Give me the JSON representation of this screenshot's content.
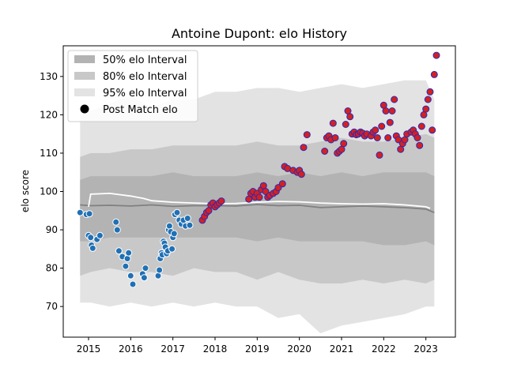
{
  "chart_data": {
    "type": "scatter",
    "title": "Antoine Dupont: elo History",
    "xlabel": "",
    "ylabel": "elo score",
    "xlim": [
      2014.4,
      2023.7
    ],
    "ylim": [
      62,
      138
    ],
    "xticks": [
      2015,
      2016,
      2017,
      2018,
      2019,
      2020,
      2021,
      2022,
      2023
    ],
    "yticks": [
      70,
      80,
      90,
      100,
      110,
      120,
      130
    ],
    "legend_position": "top-left",
    "legend": [
      {
        "label": "50% elo Interval",
        "kind": "band",
        "color": "#b3b3b3"
      },
      {
        "label": "80% elo Interval",
        "kind": "band",
        "color": "#c8c8c8"
      },
      {
        "label": "95% elo Interval",
        "kind": "band",
        "color": "#e3e3e3"
      },
      {
        "label": "Post Match elo",
        "kind": "marker",
        "color": "#000000"
      }
    ],
    "bands": {
      "x": [
        2014.8,
        2015.05,
        2015.5,
        2016.0,
        2016.5,
        2017.0,
        2017.5,
        2018.0,
        2018.5,
        2019.0,
        2019.5,
        2020.0,
        2020.5,
        2021.0,
        2021.5,
        2022.0,
        2022.5,
        2023.0,
        2023.2
      ],
      "q95_lo": [
        71,
        71,
        70,
        71,
        70,
        71,
        70,
        71,
        70,
        70,
        67,
        68,
        63,
        65,
        66,
        67,
        68,
        70,
        70
      ],
      "q95_hi": [
        120,
        121,
        123,
        125,
        122,
        124,
        124,
        126,
        126,
        127,
        127,
        126,
        127,
        128,
        127,
        128,
        129,
        129,
        124
      ],
      "q80_lo": [
        78,
        79,
        80,
        79,
        79,
        78,
        80,
        79,
        79,
        77,
        79,
        77,
        76,
        76,
        77,
        76,
        77,
        76,
        77
      ],
      "q80_hi": [
        109,
        110,
        110,
        111,
        111,
        112,
        112,
        112,
        112,
        113,
        112,
        112,
        113,
        114,
        113,
        113,
        114,
        115,
        114
      ],
      "q50_lo": [
        87,
        87,
        88,
        88,
        88,
        88,
        88,
        88,
        88,
        87,
        88,
        87,
        87,
        87,
        87,
        86,
        86,
        87,
        86
      ],
      "q50_hi": [
        103,
        104,
        104,
        104,
        104,
        105,
        104,
        104,
        104,
        105,
        104,
        105,
        104,
        105,
        104,
        105,
        105,
        105,
        104
      ]
    },
    "series": [
      {
        "name": "median elo",
        "kind": "line",
        "color": "#808080",
        "x": [
          2014.8,
          2015.05,
          2015.5,
          2016.0,
          2016.5,
          2017.0,
          2017.5,
          2018.0,
          2018.5,
          2019.0,
          2019.5,
          2020.0,
          2020.5,
          2021.0,
          2021.5,
          2022.0,
          2022.5,
          2023.0,
          2023.2
        ],
        "values": [
          96.5,
          96.3,
          96.4,
          96.2,
          96.5,
          96.1,
          96.3,
          96.3,
          96.2,
          96.6,
          96.3,
          96.4,
          95.8,
          96.0,
          96.2,
          96.0,
          95.8,
          95.4,
          94.5
        ]
      },
      {
        "name": "mean elo",
        "kind": "line",
        "color": "#ffffff",
        "x": [
          2015.0,
          2015.05,
          2015.5,
          2016.0,
          2016.3,
          2016.5,
          2017.0,
          2017.5,
          2018.0,
          2018.5,
          2019.0,
          2019.5,
          2020.0,
          2020.5,
          2021.0,
          2021.5,
          2022.0,
          2022.5,
          2023.0,
          2023.1
        ],
        "values": [
          96.0,
          99.3,
          99.5,
          98.8,
          98.2,
          97.6,
          97.2,
          97.0,
          96.8,
          96.9,
          97.2,
          97.4,
          97.3,
          97.0,
          96.8,
          96.7,
          96.8,
          96.5,
          96.0,
          95.6
        ]
      },
      {
        "name": "Post Match elo (early)",
        "kind": "scatter",
        "color": "#2070b4",
        "x": [
          2014.8,
          2014.95,
          2015.02,
          2015.0,
          2015.05,
          2015.07,
          2015.1,
          2015.2,
          2015.27,
          2015.65,
          2015.68,
          2015.72,
          2015.8,
          2015.88,
          2015.92,
          2015.95,
          2016.0,
          2016.05,
          2016.28,
          2016.32,
          2016.35,
          2016.65,
          2016.68,
          2016.7,
          2016.73,
          2016.75,
          2016.78,
          2016.8,
          2016.82,
          2016.85,
          2016.88,
          2016.9,
          2016.92,
          2016.95,
          2016.98,
          2017.0,
          2017.03,
          2017.05,
          2017.1,
          2017.15,
          2017.2,
          2017.25,
          2017.3,
          2017.35,
          2017.4
        ],
        "values": [
          94.5,
          94.0,
          94.2,
          88.5,
          88.0,
          86.0,
          85.2,
          87.5,
          88.5,
          92.0,
          90.0,
          84.5,
          83.0,
          80.5,
          82.5,
          84.0,
          78.0,
          75.8,
          78.5,
          77.5,
          80.0,
          78.0,
          79.5,
          82.5,
          84.0,
          83.5,
          87.0,
          86.5,
          85.5,
          83.8,
          84.5,
          90.0,
          91.0,
          89.5,
          85.0,
          88.0,
          89.0,
          94.0,
          94.5,
          92.5,
          91.5,
          92.5,
          91.0,
          93.0,
          91.2
        ]
      },
      {
        "name": "Post Match elo (recent)",
        "kind": "scatter",
        "color": "#d42020",
        "x": [
          2017.7,
          2017.75,
          2017.8,
          2017.85,
          2017.9,
          2017.95,
          2018.0,
          2018.05,
          2018.1,
          2018.15,
          2018.8,
          2018.85,
          2018.9,
          2018.95,
          2019.0,
          2019.05,
          2019.1,
          2019.15,
          2019.2,
          2019.25,
          2019.3,
          2019.38,
          2019.45,
          2019.5,
          2019.6,
          2019.65,
          2019.72,
          2019.85,
          2019.95,
          2020.0,
          2020.05,
          2020.1,
          2020.18,
          2020.6,
          2020.65,
          2020.7,
          2020.75,
          2020.8,
          2020.85,
          2020.9,
          2020.95,
          2021.0,
          2021.05,
          2021.1,
          2021.15,
          2021.2,
          2021.25,
          2021.3,
          2021.35,
          2021.4,
          2021.45,
          2021.5,
          2021.55,
          2021.6,
          2021.7,
          2021.75,
          2021.8,
          2021.85,
          2021.9,
          2021.95,
          2022.0,
          2022.05,
          2022.1,
          2022.15,
          2022.2,
          2022.25,
          2022.3,
          2022.35,
          2022.4,
          2022.45,
          2022.5,
          2022.55,
          2022.65,
          2022.7,
          2022.75,
          2022.8,
          2022.85,
          2022.9,
          2022.95,
          2023.0,
          2023.05,
          2023.1,
          2023.15,
          2023.2,
          2023.25
        ],
        "values": [
          92.5,
          93.5,
          94.5,
          95.0,
          96.5,
          97.0,
          96.0,
          96.5,
          97.0,
          97.5,
          98.0,
          99.5,
          100.0,
          98.5,
          99.5,
          98.5,
          100.5,
          101.5,
          100.0,
          98.5,
          99.0,
          99.5,
          100.0,
          101.0,
          102.0,
          106.5,
          106.0,
          105.5,
          105.0,
          105.5,
          104.5,
          111.5,
          114.8,
          110.5,
          114.0,
          114.5,
          113.5,
          117.8,
          114.0,
          110.0,
          110.5,
          111.0,
          112.5,
          117.5,
          121.0,
          119.5,
          115.0,
          115.5,
          114.8,
          115.0,
          115.5,
          115.2,
          114.5,
          115.0,
          114.5,
          115.5,
          116.0,
          114.0,
          109.5,
          117.0,
          122.5,
          121.0,
          114.0,
          118.0,
          121.0,
          124.0,
          114.5,
          113.5,
          111.0,
          112.5,
          113.5,
          115.0,
          115.5,
          116.0,
          115.0,
          114.0,
          112.0,
          117.0,
          120.0,
          121.5,
          124.0,
          126.0,
          116.0,
          130.5,
          135.5
        ]
      }
    ]
  }
}
